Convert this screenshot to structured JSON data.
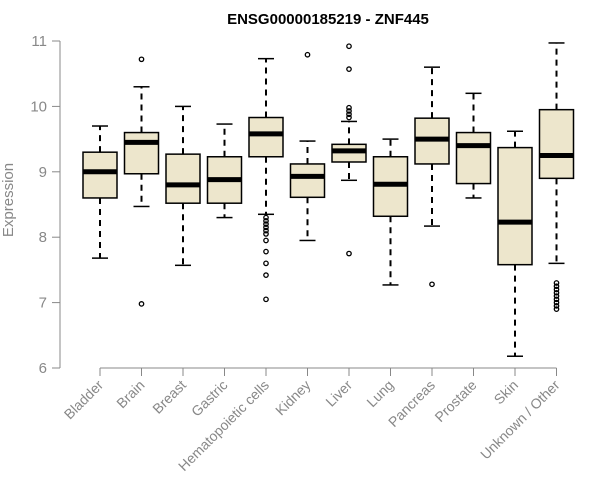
{
  "chart_data": {
    "type": "box",
    "title": "ENSG00000185219 - ZNF445",
    "xlabel": "",
    "ylabel": "Expression",
    "ylim": [
      6,
      11
    ],
    "yticks": [
      6,
      7,
      8,
      9,
      10,
      11
    ],
    "grid": false,
    "categories": [
      "Bladder",
      "Brain",
      "Breast",
      "Gastric",
      "Hematopoietic cells",
      "Kidney",
      "Liver",
      "Lung",
      "Pancreas",
      "Prostate",
      "Skin",
      "Unknown / Other"
    ],
    "boxes": [
      {
        "whisker_low": 7.68,
        "q1": 8.6,
        "median": 9.0,
        "q3": 9.3,
        "whisker_high": 9.7,
        "outliers": []
      },
      {
        "whisker_low": 8.47,
        "q1": 8.97,
        "median": 9.45,
        "q3": 9.6,
        "whisker_high": 10.3,
        "outliers": [
          10.72,
          6.98
        ]
      },
      {
        "whisker_low": 7.57,
        "q1": 8.52,
        "median": 8.8,
        "q3": 9.27,
        "whisker_high": 10.0,
        "outliers": []
      },
      {
        "whisker_low": 8.3,
        "q1": 8.52,
        "median": 8.88,
        "q3": 9.23,
        "whisker_high": 9.73,
        "outliers": []
      },
      {
        "whisker_low": 8.35,
        "q1": 9.23,
        "median": 9.58,
        "q3": 9.83,
        "whisker_high": 10.73,
        "outliers": [
          8.3,
          8.25,
          8.2,
          8.15,
          8.1,
          8.05,
          7.95,
          7.78,
          7.6,
          7.42,
          7.05
        ]
      },
      {
        "whisker_low": 7.95,
        "q1": 8.61,
        "median": 8.93,
        "q3": 9.12,
        "whisker_high": 9.47,
        "outliers": [
          10.79
        ]
      },
      {
        "whisker_low": 8.87,
        "q1": 9.15,
        "median": 9.32,
        "q3": 9.42,
        "whisker_high": 9.77,
        "outliers": [
          10.92,
          10.57,
          9.98,
          9.93,
          9.88,
          9.83,
          7.75
        ]
      },
      {
        "whisker_low": 7.27,
        "q1": 8.32,
        "median": 8.81,
        "q3": 9.23,
        "whisker_high": 9.5,
        "outliers": []
      },
      {
        "whisker_low": 8.17,
        "q1": 9.12,
        "median": 9.5,
        "q3": 9.82,
        "whisker_high": 10.6,
        "outliers": [
          7.28
        ]
      },
      {
        "whisker_low": 8.6,
        "q1": 8.82,
        "median": 9.4,
        "q3": 9.6,
        "whisker_high": 10.2,
        "outliers": []
      },
      {
        "whisker_low": 6.18,
        "q1": 7.58,
        "median": 8.23,
        "q3": 9.37,
        "whisker_high": 9.62,
        "outliers": []
      },
      {
        "whisker_low": 7.6,
        "q1": 8.9,
        "median": 9.25,
        "q3": 9.95,
        "whisker_high": 10.97,
        "outliers": [
          7.3,
          7.25,
          7.2,
          7.15,
          7.1,
          7.05,
          7.0,
          6.95,
          6.9
        ]
      }
    ],
    "colors": {
      "box_fill": "#EDE6CC",
      "stroke": "#000000",
      "axis": "#888888",
      "title": "#000000"
    }
  }
}
